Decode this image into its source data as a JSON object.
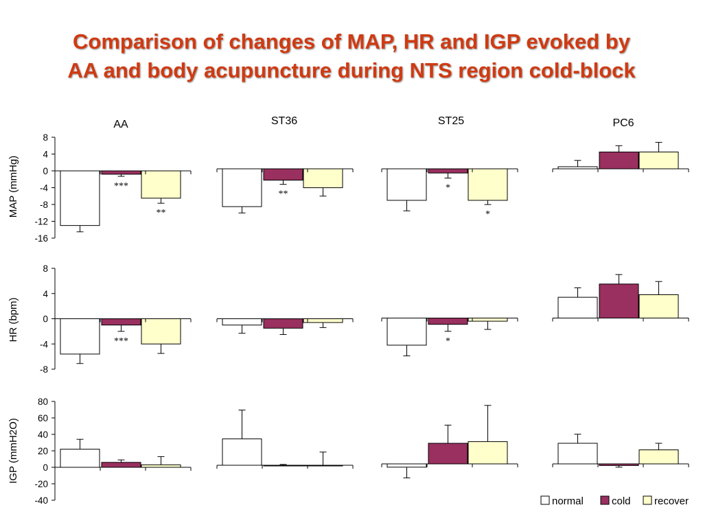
{
  "title": {
    "line1": "Comparison of changes of MAP, HR and IGP evoked by",
    "line2": "AA and body acupuncture during NTS region cold-block"
  },
  "colors": {
    "title": "#d03a12",
    "normal": "#ffffff",
    "cold": "#99305f",
    "recover": "#ffffcc"
  },
  "chart_data": {
    "type": "bar",
    "categories": [
      "AA",
      "ST36",
      "ST25",
      "PC6"
    ],
    "legend": {
      "position": "bottom-right",
      "entries": [
        "normal",
        "cold",
        "recover"
      ]
    },
    "rows": [
      {
        "ylabel": "MAP (mmHg)",
        "ylim": [
          -16,
          8
        ],
        "yticks": [
          "8",
          "4",
          "0",
          "-4",
          "-8",
          "-12",
          "-16"
        ],
        "series": [
          {
            "name": "normal",
            "values": [
              -13,
              -9,
              -7.5,
              0.5
            ],
            "errors": [
              1.5,
              1.5,
              2.5,
              1.5
            ]
          },
          {
            "name": "cold",
            "values": [
              -0.8,
              -2.7,
              -1.0,
              4.0
            ],
            "errors": [
              0.5,
              1.0,
              1.2,
              1.5
            ]
          },
          {
            "name": "recover",
            "values": [
              -6.5,
              -4.5,
              -7.5,
              4.0
            ],
            "errors": [
              1.2,
              2.0,
              1.0,
              2.3
            ]
          }
        ],
        "annotations": [
          {
            "category": "AA",
            "series": "cold",
            "text": "***"
          },
          {
            "category": "AA",
            "series": "recover",
            "text": "**"
          },
          {
            "category": "ST36",
            "series": "cold",
            "text": "**"
          },
          {
            "category": "ST25",
            "series": "cold",
            "text": "*"
          },
          {
            "category": "ST25",
            "series": "recover",
            "text": "*"
          }
        ]
      },
      {
        "ylabel": "HR (bpm)",
        "ylim": [
          -8,
          8
        ],
        "yticks": [
          "8",
          "4",
          "0",
          "-4",
          "-8"
        ],
        "series": [
          {
            "name": "normal",
            "values": [
              -5.6,
              -1.0,
              -4.3,
              3.3
            ],
            "errors": [
              1.5,
              1.3,
              1.7,
              1.5
            ]
          },
          {
            "name": "cold",
            "values": [
              -1.0,
              -1.5,
              -1.0,
              5.4
            ],
            "errors": [
              1.0,
              1.0,
              1.1,
              1.5
            ]
          },
          {
            "name": "recover",
            "values": [
              -4.0,
              -0.6,
              -0.5,
              3.7
            ],
            "errors": [
              1.5,
              0.8,
              1.3,
              2.1
            ]
          }
        ],
        "annotations": [
          {
            "category": "AA",
            "series": "cold",
            "text": "***"
          },
          {
            "category": "ST25",
            "series": "cold",
            "text": "*"
          }
        ]
      },
      {
        "ylabel": "IGP (mmH2O)",
        "ylim": [
          -40,
          80
        ],
        "yticks": [
          "80",
          "60",
          "40",
          "20",
          "0",
          "-20",
          "-40"
        ],
        "series": [
          {
            "name": "normal",
            "values": [
              22,
              32,
              -4,
              25
            ],
            "errors": [
              12,
              35,
              13,
              11
            ]
          },
          {
            "name": "cold",
            "values": [
              6,
              0,
              25,
              -2
            ],
            "errors": [
              3,
              1,
              22,
              2
            ]
          },
          {
            "name": "recover",
            "values": [
              3,
              0,
              27,
              17
            ],
            "errors": [
              10,
              16,
              44,
              8
            ]
          }
        ],
        "annotations": []
      }
    ]
  }
}
